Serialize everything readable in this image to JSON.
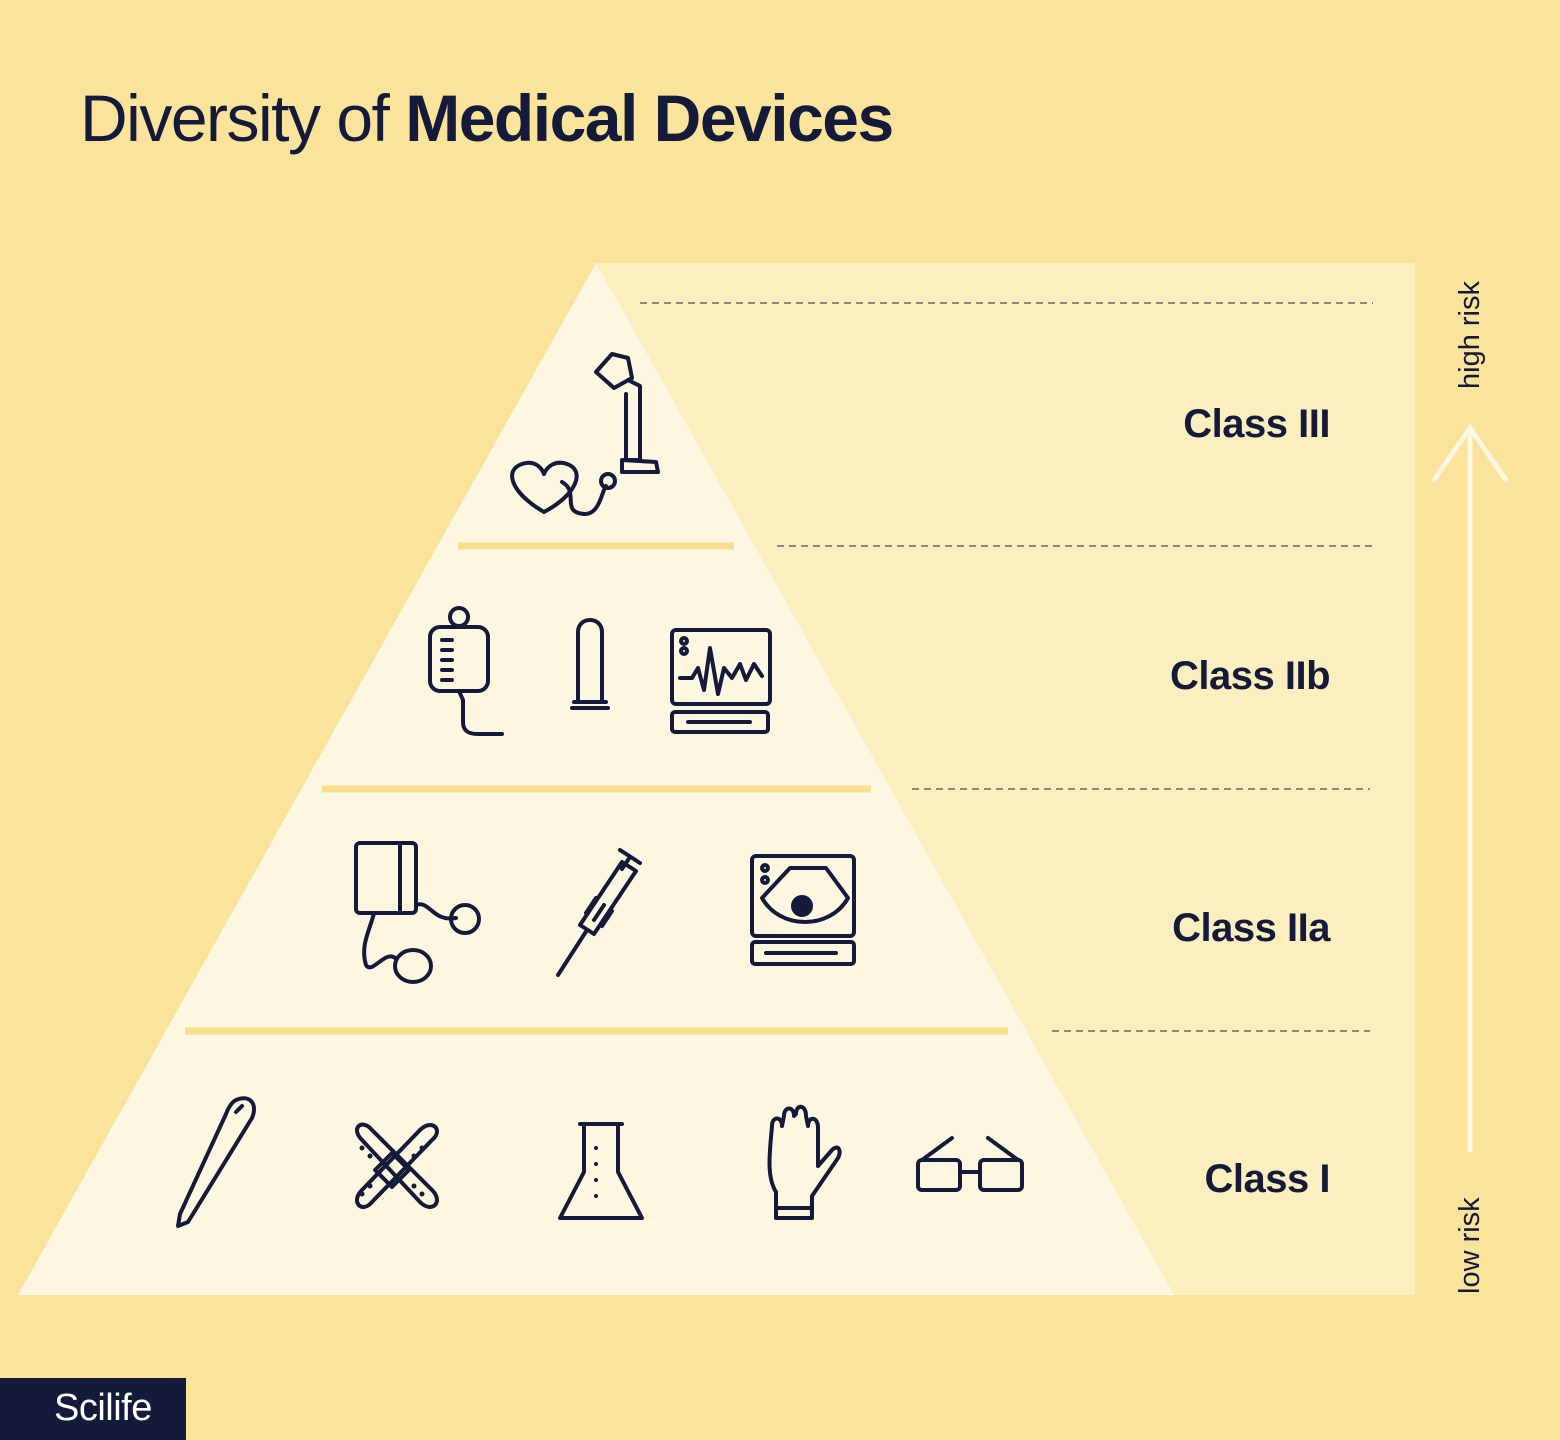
{
  "title": {
    "light": "Diversity of",
    "bold": "Medical Devices"
  },
  "classes": [
    {
      "label": "Class III",
      "icons": [
        "artificial-heart-icon",
        "lung-ventilator-icon"
      ]
    },
    {
      "label": "Class IIb",
      "icons": [
        "iv-bag-icon",
        "condom-icon",
        "monitor-icon"
      ]
    },
    {
      "label": "Class IIa",
      "icons": [
        "blood-pressure-monitor-icon",
        "syringe-icon",
        "ultrasound-icon"
      ]
    },
    {
      "label": "Class I",
      "icons": [
        "thermometer-icon",
        "bandage-icon",
        "flask-icon",
        "glove-icon",
        "glasses-icon"
      ]
    }
  ],
  "risk_axis": {
    "high": "high risk",
    "low": "low risk"
  },
  "brand": "Scilife",
  "colors": {
    "background": "#fae49b",
    "panel": "#fbefc0",
    "pyramid": "#fdf6e1",
    "ink": "#151a3a",
    "divider": "#f6e08f"
  }
}
